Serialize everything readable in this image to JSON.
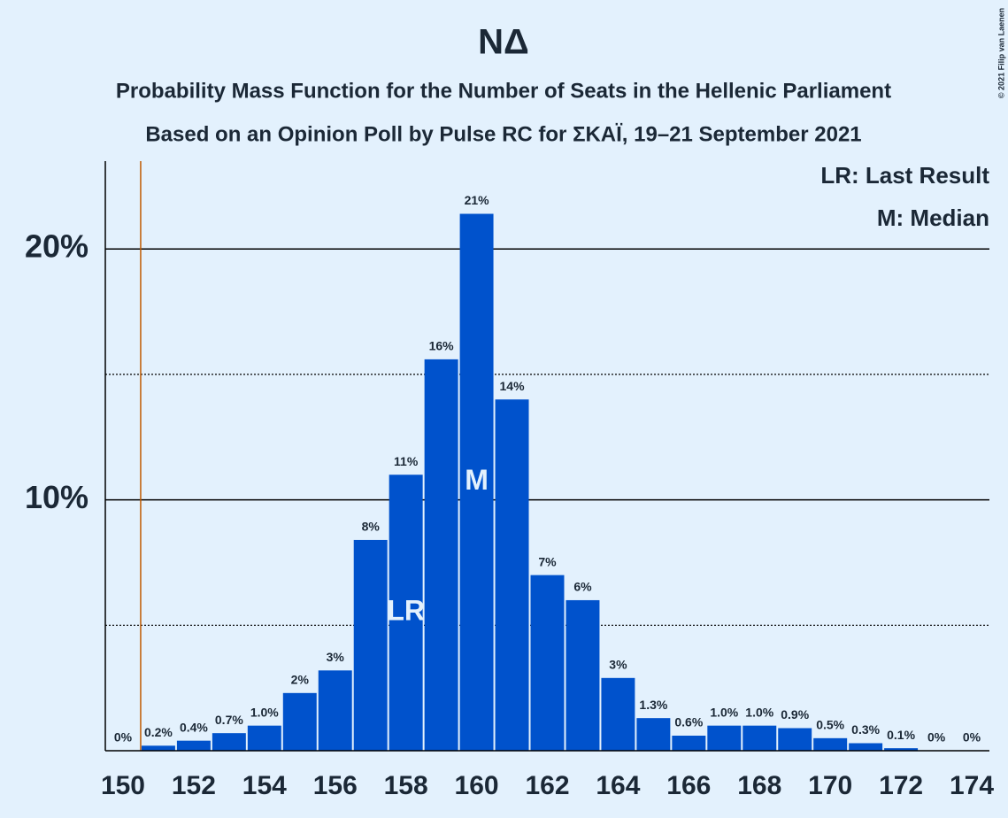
{
  "chart_data": {
    "type": "bar",
    "title": "ΝΔ",
    "subtitle": [
      "Probability Mass Function for the Number of Seats in the Hellenic Parliament",
      "Based on an Opinion Poll by Pulse RC for ΣΚΑΪ, 19–21 September 2021"
    ],
    "x": [
      150,
      151,
      152,
      153,
      154,
      155,
      156,
      157,
      158,
      159,
      160,
      161,
      162,
      163,
      164,
      165,
      166,
      167,
      168,
      169,
      170,
      171,
      172,
      173,
      174
    ],
    "values": [
      0,
      0.2,
      0.4,
      0.7,
      1.0,
      2.3,
      3.2,
      8.4,
      11.0,
      15.6,
      21.4,
      14.0,
      7.0,
      6.0,
      2.9,
      1.3,
      0.6,
      1.0,
      1.0,
      0.9,
      0.5,
      0.3,
      0.1,
      0,
      0
    ],
    "value_labels": [
      "0%",
      "0.2%",
      "0.4%",
      "0.7%",
      "1.0%",
      "2%",
      "3%",
      "8%",
      "11%",
      "16%",
      "21%",
      "14%",
      "7%",
      "6%",
      "3%",
      "1.3%",
      "0.6%",
      "1.0%",
      "1.0%",
      "0.9%",
      "0.5%",
      "0.3%",
      "0.1%",
      "0%",
      "0%"
    ],
    "color": "#0052cc",
    "xlim": [
      149.5,
      174.5
    ],
    "xticks": [
      150,
      152,
      154,
      156,
      158,
      160,
      162,
      164,
      166,
      168,
      170,
      172,
      174
    ],
    "ylim": [
      0,
      23.5
    ],
    "yticks": [
      {
        "value": 10,
        "label": "10%"
      },
      {
        "value": 20,
        "label": "20%"
      }
    ],
    "minor_yticks": [
      5,
      15
    ],
    "grid": true,
    "threshold_x": 150.5,
    "threshold_color": "#c05a00",
    "markers": [
      {
        "x": 158,
        "label": "LR"
      },
      {
        "x": 160,
        "label": "M"
      }
    ],
    "legend": [
      "LR: Last Result",
      "M: Median"
    ],
    "copyright": "© 2021 Filip van Laenen"
  }
}
